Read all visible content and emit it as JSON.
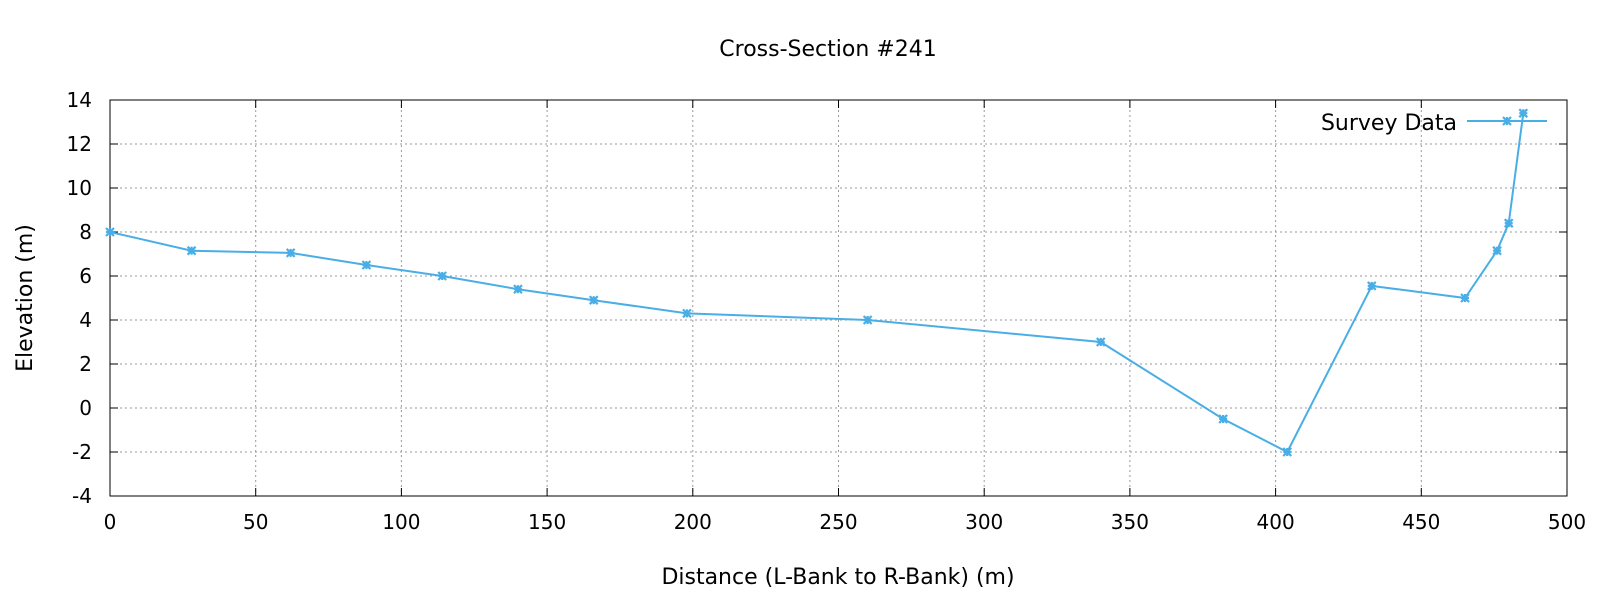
{
  "chart_data": {
    "type": "line",
    "title": "Cross-Section #241",
    "xlabel": "Distance (L-Bank to R-Bank) (m)",
    "ylabel": "Elevation (m)",
    "xlim": [
      0,
      500
    ],
    "ylim": [
      -4,
      14
    ],
    "x_ticks": [
      0,
      50,
      100,
      150,
      200,
      250,
      300,
      350,
      400,
      450,
      500
    ],
    "y_ticks": [
      -4,
      -2,
      0,
      2,
      4,
      6,
      8,
      10,
      12,
      14
    ],
    "grid": true,
    "legend_position": "top-right",
    "series": [
      {
        "name": "Survey Data",
        "color": "#4aaee6",
        "marker": "asterisk",
        "x": [
          0,
          28,
          62,
          88,
          114,
          140,
          166,
          198,
          260,
          340,
          382,
          404,
          433,
          465,
          476,
          480,
          485
        ],
        "y": [
          8.0,
          7.15,
          7.05,
          6.5,
          6.0,
          5.4,
          4.9,
          4.3,
          4.0,
          3.0,
          -0.5,
          -2.0,
          5.55,
          5.0,
          7.15,
          8.4,
          13.4
        ]
      }
    ]
  }
}
